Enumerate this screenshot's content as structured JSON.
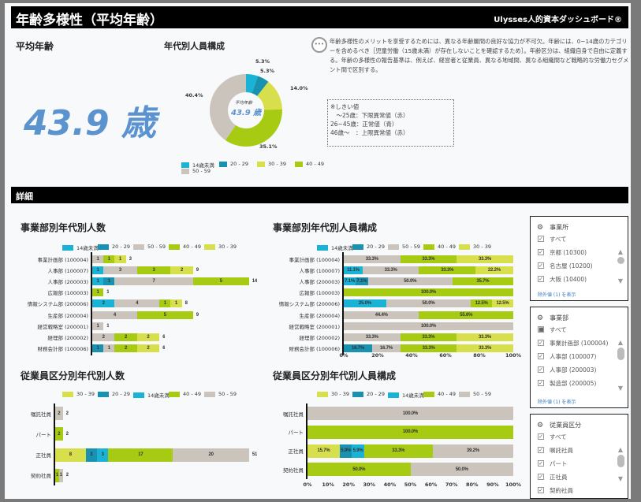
{
  "header": {
    "title": "年齢多様性（平均年齢）",
    "brand": "Ulysses人的資本ダッシュボード®"
  },
  "summary": {
    "avg_label": "平均年齢",
    "avg_value": "43.9 歳"
  },
  "description": "年齢多様性のメリットを享受するためには、異なる年齢層間の良好な協力が不可欠。年齢には、0~14歳のカテゴリーを含めるべき［児童労働（15歳未満）が存在しないことを確認するため］。年齢区分は、組織自身で自由に定義する。年齢の多様性の報告基準は、例えば、経営者と従業員、異なる地域間、異なる組織間など戦略的な労働力セグメント間で区別する。",
  "threshold": {
    "title": "※しきい値",
    "lines": [
      "　～25歳：下限異常値（赤）",
      "26~45歳：正常値（青）",
      "46歳～　：上限異常値（赤）"
    ]
  },
  "section_detail": "詳細",
  "colors": {
    "14歳未満": "#1ab3d6",
    "20 - 29": "#1991b0",
    "30 - 39": "#d8df4c",
    "40 - 49": "#a7cb12",
    "50 - 59": "#cbc4bc"
  },
  "chart_data": [
    {
      "id": "donut",
      "type": "pie",
      "title": "年代別人員構成",
      "center_label": "平均年齢",
      "center_value": "43.9 歳",
      "categories": [
        "14歳未満",
        "20 - 29",
        "30 - 39",
        "40 - 49",
        "50 - 59"
      ],
      "values": [
        5.3,
        5.3,
        14.0,
        35.1,
        40.4
      ],
      "labels": [
        "5.3%",
        "5.3%",
        "14.0%",
        "35.1%",
        "40.4%"
      ],
      "legend": [
        "14歳未満",
        "20 - 29",
        "30 - 39",
        "40 - 49",
        "50 - 59"
      ]
    },
    {
      "id": "dept_count",
      "type": "bar",
      "title": "事業部別年代別人数",
      "legend": [
        "14歳未満",
        "20 - 29",
        "50 - 59",
        "40 - 49",
        "30 - 39"
      ],
      "rows": [
        {
          "label": "事業計画部 (100004)",
          "total": "3",
          "segments": [
            [
              "50 - 59",
              1,
              "1"
            ],
            [
              "40 - 49",
              1,
              "1"
            ],
            [
              "30 - 39",
              1,
              "1"
            ]
          ]
        },
        {
          "label": "人事部 (100007)",
          "total": "9",
          "segments": [
            [
              "14歳未満",
              1,
              "1"
            ],
            [
              "50 - 59",
              3,
              "3"
            ],
            [
              "40 - 49",
              3,
              "3"
            ],
            [
              "30 - 39",
              2,
              "2"
            ]
          ]
        },
        {
          "label": "人事部 (200003)",
          "total": "14",
          "segments": [
            [
              "14歳未満",
              1,
              "1"
            ],
            [
              "20 - 29",
              1,
              "1"
            ],
            [
              "50 - 59",
              7,
              "7"
            ],
            [
              "40 - 49",
              5,
              "5"
            ]
          ]
        },
        {
          "label": "広報部 (100003)",
          "total": "1",
          "segments": [
            [
              "40 - 49",
              1,
              "1"
            ]
          ]
        },
        {
          "label": "情報システム部 (200006)",
          "total": "8",
          "segments": [
            [
              "14歳未満",
              2,
              "2"
            ],
            [
              "50 - 59",
              4,
              "4"
            ],
            [
              "40 - 49",
              1,
              "1"
            ],
            [
              "30 - 39",
              1,
              "1"
            ]
          ]
        },
        {
          "label": "生産部 (200004)",
          "total": "9",
          "segments": [
            [
              "50 - 59",
              4,
              "4"
            ],
            [
              "40 - 49",
              5,
              "5"
            ]
          ]
        },
        {
          "label": "経営戦略室 (200001)",
          "total": "1",
          "segments": [
            [
              "50 - 59",
              1,
              "1"
            ]
          ]
        },
        {
          "label": "経理部 (200002)",
          "total": "6",
          "segments": [
            [
              "50 - 59",
              2,
              "2"
            ],
            [
              "40 - 49",
              2,
              "2"
            ],
            [
              "30 - 39",
              2,
              "2"
            ]
          ]
        },
        {
          "label": "財務会計部 (100006)",
          "total": "6",
          "segments": [
            [
              "20 - 29",
              1,
              "1"
            ],
            [
              "50 - 59",
              1,
              "1"
            ],
            [
              "40 - 49",
              2,
              "2"
            ],
            [
              "30 - 39",
              2,
              "2"
            ]
          ]
        }
      ]
    },
    {
      "id": "dept_pct",
      "type": "bar",
      "title": "事業部別年代別人員構成",
      "legend": [
        "14歳未満",
        "20 - 29",
        "50 - 59",
        "40 - 49",
        "30 - 39"
      ],
      "xticks": [
        "0%",
        "20%",
        "40%",
        "60%",
        "80%",
        "100%"
      ],
      "xlim": [
        0,
        100
      ],
      "rows": [
        {
          "label": "事業計画部 (100004)",
          "segments": [
            [
              "50 - 59",
              33.3,
              "33.3%"
            ],
            [
              "40 - 49",
              33.3,
              "33.3%"
            ],
            [
              "30 - 39",
              33.3,
              "33.3%"
            ]
          ]
        },
        {
          "label": "人事部 (100007)",
          "segments": [
            [
              "14歳未満",
              11.1,
              "11.1%"
            ],
            [
              "50 - 59",
              33.3,
              "33.3%"
            ],
            [
              "40 - 49",
              33.3,
              "33.3%"
            ],
            [
              "30 - 39",
              22.2,
              "22.2%"
            ]
          ]
        },
        {
          "label": "人事部 (200003)",
          "segments": [
            [
              "14歳未満",
              7.1,
              "7.1%"
            ],
            [
              "20 - 29",
              7.1,
              "7.1%"
            ],
            [
              "50 - 59",
              50.0,
              "50.0%"
            ],
            [
              "40 - 49",
              35.7,
              "35.7%"
            ]
          ]
        },
        {
          "label": "広報部 (100003)",
          "segments": [
            [
              "40 - 49",
              100,
              "100.0%"
            ]
          ]
        },
        {
          "label": "情報システム部 (200006)",
          "segments": [
            [
              "14歳未満",
              25,
              "25.0%"
            ],
            [
              "50 - 59",
              50,
              "50.0%"
            ],
            [
              "40 - 49",
              12.5,
              "12.5%"
            ],
            [
              "30 - 39",
              12.5,
              "12.5%"
            ]
          ]
        },
        {
          "label": "生産部 (200004)",
          "segments": [
            [
              "50 - 59",
              44.4,
              "44.4%"
            ],
            [
              "40 - 49",
              55.6,
              "55.6%"
            ]
          ]
        },
        {
          "label": "経営戦略室 (200001)",
          "segments": [
            [
              "50 - 59",
              100,
              "100.0%"
            ]
          ]
        },
        {
          "label": "経理部 (200002)",
          "segments": [
            [
              "50 - 59",
              33.3,
              "33.3%"
            ],
            [
              "40 - 49",
              33.3,
              "33.3%"
            ],
            [
              "30 - 39",
              33.3,
              "33.3%"
            ]
          ]
        },
        {
          "label": "財務会計部 (100006)",
          "segments": [
            [
              "20 - 29",
              16.7,
              "16.7%"
            ],
            [
              "50 - 59",
              16.7,
              "16.7%"
            ],
            [
              "40 - 49",
              33.3,
              "33.3%"
            ],
            [
              "30 - 39",
              33.3,
              "33.3%"
            ]
          ]
        }
      ]
    },
    {
      "id": "emp_count",
      "type": "bar",
      "title": "従業員区分別年代別人数",
      "legend": [
        "30 - 39",
        "20 - 29",
        "14歳未満",
        "40 - 49",
        "50 - 59"
      ],
      "rows": [
        {
          "label": "嘱託社員",
          "total": "2",
          "segments": [
            [
              "50 - 59",
              2,
              "2"
            ]
          ]
        },
        {
          "label": "パート",
          "total": "2",
          "segments": [
            [
              "40 - 49",
              2,
              "2"
            ]
          ]
        },
        {
          "label": "正社員",
          "total": "51",
          "segments": [
            [
              "30 - 39",
              8,
              "8"
            ],
            [
              "20 - 29",
              3,
              "3"
            ],
            [
              "14歳未満",
              3,
              "3"
            ],
            [
              "40 - 49",
              17,
              "17"
            ],
            [
              "50 - 59",
              20,
              "20"
            ]
          ]
        },
        {
          "label": "契約社員",
          "total": "2",
          "segments": [
            [
              "40 - 49",
              1,
              "1"
            ],
            [
              "50 - 59",
              1,
              "1"
            ]
          ]
        }
      ]
    },
    {
      "id": "emp_pct",
      "type": "bar",
      "title": "従業員区分別年代別人員構成",
      "legend": [
        "30 - 39",
        "20 - 29",
        "14歳未満",
        "40 - 49",
        "50 - 59"
      ],
      "xticks": [
        "0%",
        "10%",
        "20%",
        "30%",
        "40%",
        "50%",
        "60%",
        "70%",
        "80%",
        "90%",
        "100%"
      ],
      "xlim": [
        0,
        100
      ],
      "rows": [
        {
          "label": "嘱託社員",
          "segments": [
            [
              "50 - 59",
              100,
              "100.0%"
            ]
          ]
        },
        {
          "label": "パート",
          "segments": [
            [
              "40 - 49",
              100,
              "100.0%"
            ]
          ]
        },
        {
          "label": "正社員",
          "segments": [
            [
              "30 - 39",
              15.7,
              "15.7%"
            ],
            [
              "20 - 29",
              5.9,
              "5.9%"
            ],
            [
              "14歳未満",
              5.9,
              "5.9%"
            ],
            [
              "40 - 49",
              33.3,
              "33.3%"
            ],
            [
              "50 - 59",
              39.2,
              "39.2%"
            ]
          ]
        },
        {
          "label": "契約社員",
          "segments": [
            [
              "40 - 49",
              50,
              "50.0%"
            ],
            [
              "50 - 59",
              50,
              "50.0%"
            ]
          ]
        }
      ]
    }
  ],
  "filters": [
    {
      "title": "事業所",
      "all": "すべて",
      "all_state": "checked",
      "items": [
        "京都 (10300)",
        "名古屋 (10200)",
        "大阪 (10400)"
      ],
      "more": "除外値 (1) を表示"
    },
    {
      "title": "事業部",
      "all": "すべて",
      "all_state": "partial",
      "items": [
        "事業計画部 (100004)",
        "人事部 (100007)",
        "人事部 (200003)",
        "製造部 (200005)"
      ],
      "more": "除外値 (1) を表示"
    },
    {
      "title": "従業員区分",
      "all": "すべて",
      "all_state": "checked",
      "items": [
        "嘱託社員",
        "パート",
        "正社員",
        "契約社員"
      ]
    }
  ]
}
